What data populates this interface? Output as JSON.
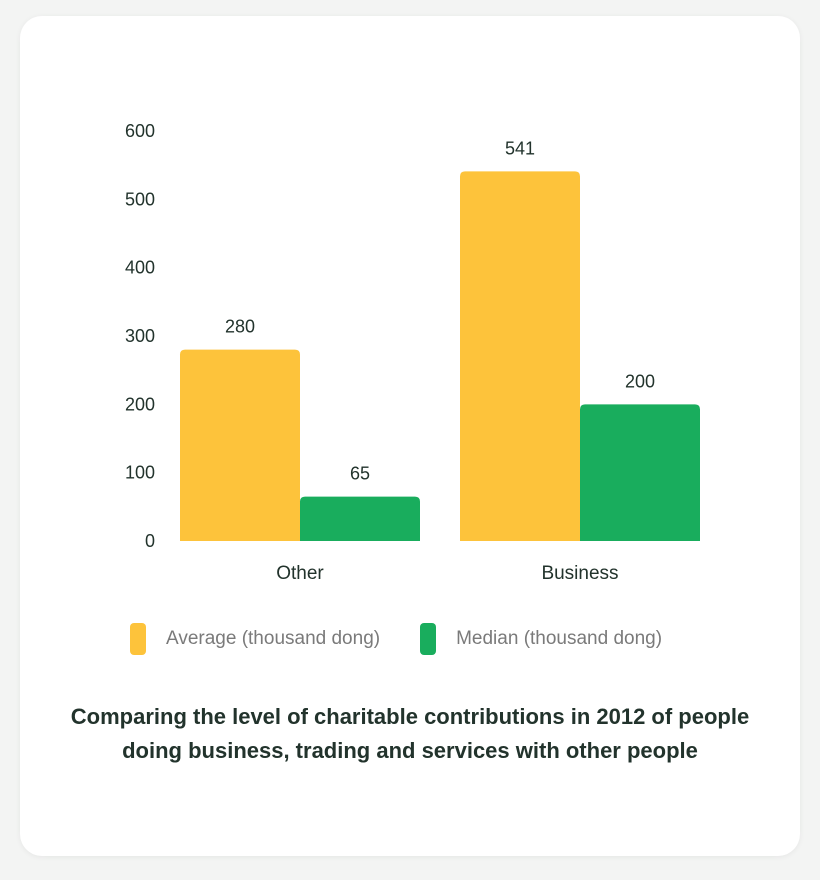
{
  "chart_data": {
    "type": "bar",
    "title": "Comparing the level of charitable contributions in 2012 of people doing business, trading and services with other people",
    "categories": [
      "Other",
      "Business"
    ],
    "series": [
      {
        "name": "Average (thousand dong)",
        "values": [
          280,
          541
        ],
        "color": "#fdc33b"
      },
      {
        "name": "Median (thousand dong)",
        "values": [
          65,
          200
        ],
        "color": "#19ad5d"
      }
    ],
    "y_ticks": [
      "0",
      "100",
      "200",
      "300",
      "400",
      "500",
      "600"
    ],
    "ylim": [
      0,
      600
    ],
    "grid": false,
    "legend_position": "bottom"
  }
}
